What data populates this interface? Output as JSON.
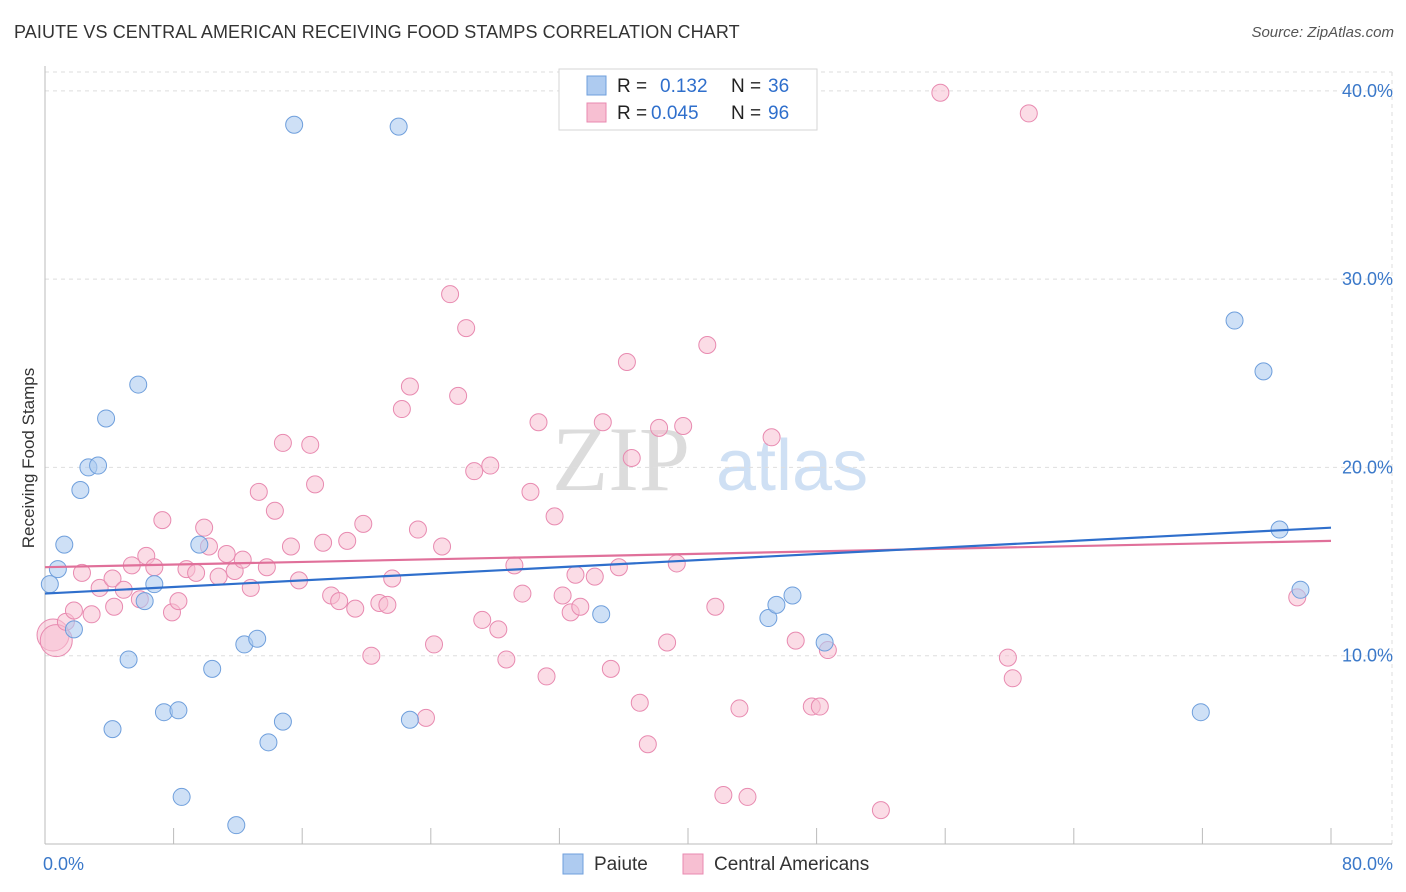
{
  "header": {
    "title": "PAIUTE VS CENTRAL AMERICAN RECEIVING FOOD STAMPS CORRELATION CHART",
    "source": "Source: ZipAtlas.com"
  },
  "watermark": {
    "zip": "ZIP",
    "atlas": "atlas"
  },
  "legend_top": [
    {
      "r_label": "R =",
      "r_value": "0.132",
      "n_label": "N =",
      "n_value": "36"
    },
    {
      "r_label": "R =",
      "r_value": "0.045",
      "n_label": "N =",
      "n_value": "96"
    }
  ],
  "legend_bottom": [
    "Paiute",
    "Central Americans"
  ],
  "chart_data": {
    "type": "scatter",
    "title": "PAIUTE VS CENTRAL AMERICAN RECEIVING FOOD STAMPS CORRELATION CHART",
    "xlabel": "",
    "ylabel": "Receiving Food Stamps",
    "xlim": [
      0,
      80
    ],
    "ylim": [
      0,
      41
    ],
    "x_tick_labels": [
      "0.0%",
      "80.0%"
    ],
    "y_ticks": [
      10,
      20,
      30,
      40
    ],
    "y_tick_labels": [
      "10.0%",
      "20.0%",
      "30.0%",
      "40.0%"
    ],
    "grid": true,
    "legend_position": "top-center",
    "colors": {
      "paiute_fill": "#aecbf0",
      "paiute_stroke": "#6f9fdc",
      "paiute_line": "#2f6fcc",
      "central_fill": "#f7bfd2",
      "central_stroke": "#e88ab0",
      "central_line": "#e0709a",
      "tick_text": "#3a78c9"
    },
    "series": [
      {
        "name": "Paiute",
        "r": 0.132,
        "n": 36,
        "trend": [
          [
            0,
            13.3
          ],
          [
            80,
            16.8
          ]
        ],
        "points": [
          [
            0.3,
            13.8
          ],
          [
            0.8,
            14.6
          ],
          [
            1.2,
            15.9
          ],
          [
            1.8,
            11.4
          ],
          [
            2.2,
            18.8
          ],
          [
            2.7,
            20.0
          ],
          [
            3.3,
            20.1
          ],
          [
            3.8,
            22.6
          ],
          [
            4.2,
            6.1
          ],
          [
            5.2,
            9.8
          ],
          [
            5.8,
            24.4
          ],
          [
            6.2,
            12.9
          ],
          [
            6.8,
            13.8
          ],
          [
            7.4,
            7.0
          ],
          [
            8.3,
            7.1
          ],
          [
            8.5,
            2.5
          ],
          [
            9.6,
            15.9
          ],
          [
            10.4,
            9.3
          ],
          [
            11.9,
            1.0
          ],
          [
            12.4,
            10.6
          ],
          [
            13.2,
            10.9
          ],
          [
            13.9,
            5.4
          ],
          [
            14.8,
            6.5
          ],
          [
            15.5,
            38.2
          ],
          [
            22.0,
            38.1
          ],
          [
            22.7,
            6.6
          ],
          [
            34.6,
            12.2
          ],
          [
            45.0,
            12.0
          ],
          [
            45.5,
            12.7
          ],
          [
            46.5,
            13.2
          ],
          [
            48.5,
            10.7
          ],
          [
            71.9,
            7.0
          ],
          [
            74.0,
            27.8
          ],
          [
            75.8,
            25.1
          ],
          [
            76.8,
            16.7
          ],
          [
            78.1,
            13.5
          ]
        ]
      },
      {
        "name": "Central Americans",
        "r": 0.045,
        "n": 96,
        "trend": [
          [
            0,
            14.7
          ],
          [
            80,
            16.1
          ]
        ],
        "points": [
          [
            0.5,
            11.1
          ],
          [
            0.7,
            10.8
          ],
          [
            1.3,
            11.8
          ],
          [
            1.8,
            12.4
          ],
          [
            2.3,
            14.4
          ],
          [
            2.9,
            12.2
          ],
          [
            3.4,
            13.6
          ],
          [
            4.2,
            14.1
          ],
          [
            4.3,
            12.6
          ],
          [
            4.9,
            13.5
          ],
          [
            5.4,
            14.8
          ],
          [
            5.9,
            13.0
          ],
          [
            6.3,
            15.3
          ],
          [
            6.8,
            14.7
          ],
          [
            7.3,
            17.2
          ],
          [
            7.9,
            12.3
          ],
          [
            8.3,
            12.9
          ],
          [
            8.8,
            14.6
          ],
          [
            9.4,
            14.4
          ],
          [
            9.9,
            16.8
          ],
          [
            10.2,
            15.8
          ],
          [
            10.8,
            14.2
          ],
          [
            11.3,
            15.4
          ],
          [
            11.8,
            14.5
          ],
          [
            12.3,
            15.1
          ],
          [
            12.8,
            13.6
          ],
          [
            13.3,
            18.7
          ],
          [
            13.8,
            14.7
          ],
          [
            14.3,
            17.7
          ],
          [
            14.8,
            21.3
          ],
          [
            15.3,
            15.8
          ],
          [
            15.8,
            14.0
          ],
          [
            16.5,
            21.2
          ],
          [
            16.8,
            19.1
          ],
          [
            17.3,
            16.0
          ],
          [
            17.8,
            13.2
          ],
          [
            18.3,
            12.9
          ],
          [
            18.8,
            16.1
          ],
          [
            19.3,
            12.5
          ],
          [
            19.8,
            17.0
          ],
          [
            20.3,
            10.0
          ],
          [
            20.8,
            12.8
          ],
          [
            21.3,
            12.7
          ],
          [
            21.6,
            14.1
          ],
          [
            22.2,
            23.1
          ],
          [
            22.7,
            24.3
          ],
          [
            23.2,
            16.7
          ],
          [
            23.7,
            6.7
          ],
          [
            24.2,
            10.6
          ],
          [
            24.7,
            15.8
          ],
          [
            25.2,
            29.2
          ],
          [
            25.7,
            23.8
          ],
          [
            26.2,
            27.4
          ],
          [
            26.7,
            19.8
          ],
          [
            27.2,
            11.9
          ],
          [
            27.7,
            20.1
          ],
          [
            28.2,
            11.4
          ],
          [
            28.7,
            9.8
          ],
          [
            29.2,
            14.8
          ],
          [
            29.7,
            13.3
          ],
          [
            30.2,
            18.7
          ],
          [
            30.7,
            22.4
          ],
          [
            31.2,
            8.9
          ],
          [
            31.7,
            17.4
          ],
          [
            32.2,
            13.2
          ],
          [
            32.7,
            12.3
          ],
          [
            33.0,
            14.3
          ],
          [
            33.3,
            12.6
          ],
          [
            34.2,
            14.2
          ],
          [
            34.7,
            22.4
          ],
          [
            35.2,
            9.3
          ],
          [
            35.7,
            14.7
          ],
          [
            36.2,
            25.6
          ],
          [
            36.5,
            20.5
          ],
          [
            37.0,
            7.5
          ],
          [
            37.5,
            5.3
          ],
          [
            38.2,
            22.1
          ],
          [
            38.7,
            10.7
          ],
          [
            39.3,
            14.9
          ],
          [
            39.7,
            22.2
          ],
          [
            41.2,
            26.5
          ],
          [
            41.7,
            12.6
          ],
          [
            42.2,
            2.6
          ],
          [
            43.2,
            7.2
          ],
          [
            43.7,
            2.5
          ],
          [
            45.2,
            21.6
          ],
          [
            46.7,
            10.8
          ],
          [
            47.7,
            7.3
          ],
          [
            48.7,
            10.3
          ],
          [
            48.2,
            7.3
          ],
          [
            52.0,
            1.8
          ],
          [
            55.7,
            39.9
          ],
          [
            59.9,
            9.9
          ],
          [
            60.2,
            8.8
          ],
          [
            61.2,
            38.8
          ],
          [
            77.9,
            13.1
          ]
        ]
      }
    ]
  }
}
